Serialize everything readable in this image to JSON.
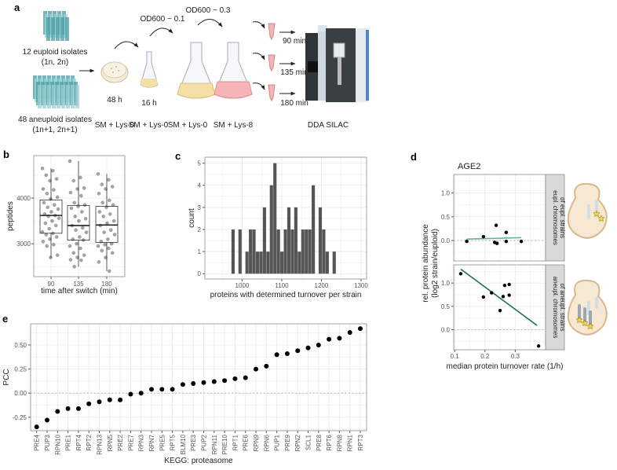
{
  "figure": {
    "panel_labels": {
      "a": "a",
      "b": "b",
      "c": "c",
      "d": "d",
      "e": "e"
    },
    "colors": {
      "euploid_fit": "#5bb5a5",
      "aneuploid_fit": "#1f6e5a",
      "bars": "#555555",
      "points": "#000000",
      "strip": "#d9d9d9",
      "medium_lys0": "#f4dfa6",
      "medium_lys8": "#f6b3b8",
      "isolates": "#4a9ea3"
    }
  },
  "panel_a": {
    "euploid_label": "12 euploid isolates",
    "euploid_ploidy": "(1n, 2n)",
    "aneuploid_label": "48 aneuploid isolates",
    "aneuploid_ploidy": "(1n+1, 2n+1)",
    "time_plate": "48 h",
    "time_preculture": "16 h",
    "od_1": "OD600 ~ 0.1",
    "od_2": "OD600 ~ 0.3",
    "medium_1": "SM + Lys-0",
    "medium_2": "SM + Lys-0",
    "medium_3": "SM + Lys-0",
    "medium_4": "SM + Lys-8",
    "timepoint_1": "90 min",
    "timepoint_2": "135 min",
    "timepoint_3": "180 min",
    "instrument_label": "DDA SILAC",
    "icons": [
      "isolate-tubes-icon",
      "petri-dish-icon",
      "flask-icon",
      "sample-tube-icon",
      "mass-spectrometer-icon"
    ]
  },
  "chart_data": [
    {
      "panel": "b",
      "type": "box",
      "xlabel": "time after switch (min)",
      "ylabel": "peptides",
      "categories": [
        "90",
        "135",
        "180"
      ],
      "yticks": [
        3000,
        4000
      ],
      "ylim": [
        2280,
        4930
      ],
      "grid": true,
      "boxes": [
        {
          "category": "90",
          "min": 2700,
          "q1": 3230,
          "median": 3620,
          "q3": 3960,
          "max": 4650
        },
        {
          "category": "135",
          "min": 2500,
          "q1": 3080,
          "median": 3400,
          "q3": 3840,
          "max": 4810
        },
        {
          "category": "180",
          "min": 2400,
          "q1": 3030,
          "median": 3410,
          "q3": 3820,
          "max": 4530
        }
      ],
      "points": [
        [
          4650,
          4600,
          4500,
          4420,
          4380,
          4200,
          4180,
          4100,
          4020,
          3980,
          3900,
          3850,
          3800,
          3760,
          3700,
          3650,
          3620,
          3600,
          3560,
          3500,
          3450,
          3400,
          3330,
          3260,
          3230,
          3200,
          3150,
          3100,
          3050,
          2980,
          2950,
          2750,
          2700
        ],
        [
          4810,
          4450,
          4380,
          4220,
          4200,
          4120,
          4050,
          3900,
          3850,
          3820,
          3780,
          3700,
          3600,
          3550,
          3500,
          3400,
          3350,
          3300,
          3250,
          3150,
          3100,
          3080,
          3000,
          2950,
          2900,
          2800,
          2750,
          2700,
          2650,
          2640,
          2500
        ],
        [
          4530,
          4400,
          4300,
          4250,
          4200,
          4100,
          3950,
          3900,
          3850,
          3800,
          3700,
          3650,
          3600,
          3500,
          3450,
          3400,
          3300,
          3250,
          3200,
          3100,
          3050,
          3000,
          2980,
          2950,
          2900,
          2850,
          2800,
          2700,
          2600,
          2400
        ]
      ]
    },
    {
      "panel": "c",
      "type": "histogram",
      "xlabel": "proteins with determined turnover per strain",
      "ylabel": "count",
      "xticks": [
        1000,
        1100,
        1200,
        1300
      ],
      "yticks": [
        0,
        1,
        2,
        3,
        4,
        5
      ],
      "xlim": [
        906,
        1314
      ],
      "ylim": [
        -0.24,
        5.27
      ],
      "grid": true,
      "first_bin_start": 973,
      "bin_width": 8.8,
      "counts": [
        2,
        0,
        2,
        0,
        1,
        2,
        2,
        1,
        1,
        3,
        1,
        4,
        5,
        2,
        1,
        2,
        3,
        2,
        3,
        1,
        2,
        2,
        2,
        4,
        0,
        3,
        2,
        1,
        0,
        1
      ]
    },
    {
      "panel": "d",
      "type": "scatter",
      "title": "AGE2",
      "xlabel": "median protein turnover rate (1/h)",
      "ylabel": "rel. protein abundance\n(log2 strain/euploid)",
      "ylabel_line1": "rel. protein abundance",
      "ylabel_line2": "(log2 strain/euploid)",
      "xticks": [
        0.1,
        0.2,
        0.3
      ],
      "yticks": [
        0.0,
        0.5,
        1.0
      ],
      "xlim": [
        0.097,
        0.4
      ],
      "ylim": [
        -0.43,
        1.39
      ],
      "grid": true,
      "facets": [
        {
          "strip_line1": "eupl. chromosomes",
          "strip_line2": "of eupl. strains",
          "points": [
            [
              0.14,
              -0.02
            ],
            [
              0.195,
              0.08
            ],
            [
              0.237,
              0.32
            ],
            [
              0.232,
              -0.04
            ],
            [
              0.24,
              -0.06
            ],
            [
              0.27,
              0.17
            ],
            [
              0.27,
              -0.02
            ],
            [
              0.32,
              -0.02
            ]
          ],
          "fit": [
            [
              0.14,
              0.03
            ],
            [
              0.32,
              0.06
            ]
          ],
          "fit_color": "#5bb5a5",
          "icon": "euploid-yeast-cell-icon"
        },
        {
          "strip_line1": "aneupl. chromosomes",
          "strip_line2": "of aneupl. strains",
          "points": [
            [
              0.12,
              1.2
            ],
            [
              0.195,
              0.7
            ],
            [
              0.222,
              0.79
            ],
            [
              0.25,
              0.41
            ],
            [
              0.26,
              0.71
            ],
            [
              0.265,
              0.95
            ],
            [
              0.28,
              0.97
            ],
            [
              0.28,
              0.74
            ],
            [
              0.377,
              -0.35
            ]
          ],
          "fit": [
            [
              0.12,
              1.3
            ],
            [
              0.372,
              0.09
            ]
          ],
          "fit_color": "#1f6e5a",
          "icon": "aneuploid-yeast-cell-icon"
        }
      ]
    },
    {
      "panel": "e",
      "type": "scatter",
      "xlabel": "KEGG: proteasome",
      "ylabel": "PCC",
      "yticks": [
        -0.25,
        0.0,
        0.25,
        0.5
      ],
      "ytick_labels": [
        "-0.25",
        "0.00",
        "0.25",
        "0.50"
      ],
      "ylim": [
        -0.39,
        0.72
      ],
      "grid": true,
      "categories": [
        "PRE4",
        "PUP3",
        "RPN10",
        "PRE1",
        "RPT4",
        "RPT2",
        "RPN13",
        "RPN5",
        "PRE2",
        "PRE7",
        "RPN3",
        "RPN7",
        "PRE5",
        "RPT5",
        "BLM10",
        "PRE3",
        "PUP2",
        "RPN11",
        "PRE10",
        "RPT1",
        "PRE6",
        "RPN9",
        "RPN6",
        "PUP1",
        "PRE9",
        "RPN2",
        "SCL1",
        "PRE8",
        "RPT6",
        "RPN8",
        "RPN1",
        "RPT3"
      ],
      "values": [
        -0.35,
        -0.28,
        -0.19,
        -0.16,
        -0.16,
        -0.11,
        -0.09,
        -0.07,
        -0.07,
        -0.01,
        0.0,
        0.04,
        0.04,
        0.04,
        0.09,
        0.1,
        0.11,
        0.12,
        0.13,
        0.15,
        0.16,
        0.25,
        0.28,
        0.4,
        0.41,
        0.44,
        0.47,
        0.5,
        0.56,
        0.57,
        0.63,
        0.67
      ]
    }
  ]
}
